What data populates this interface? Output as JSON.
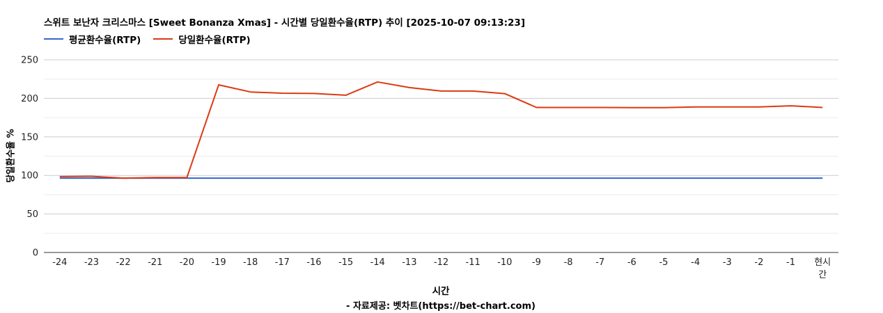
{
  "chart_data": {
    "type": "line",
    "title": "스위트 보난자 크리스마스 [Sweet Bonanza Xmas] - 시간별 당일환수율(RTP) 추이 [2025-10-07 09:13:23]",
    "xlabel": "시간",
    "ylabel": "당일환수율 %",
    "source": "- 자료제공: 벳차트(https://bet-chart.com)",
    "categories": [
      "-24",
      "-23",
      "-22",
      "-21",
      "-20",
      "-19",
      "-18",
      "-17",
      "-16",
      "-15",
      "-14",
      "-13",
      "-12",
      "-11",
      "-10",
      "-9",
      "-8",
      "-7",
      "-6",
      "-5",
      "-4",
      "-3",
      "-2",
      "-1",
      "현시간"
    ],
    "yticks": [
      0,
      50,
      100,
      150,
      200,
      250
    ],
    "ylim": [
      0,
      250
    ],
    "grid": true,
    "legend_position": "top-left",
    "series": [
      {
        "name": "평균환수율(RTP)",
        "color": "#3366cc",
        "values": [
          96.5,
          96.5,
          96.5,
          96.5,
          96.5,
          96.5,
          96.5,
          96.5,
          96.5,
          96.5,
          96.5,
          96.5,
          96.5,
          96.5,
          96.5,
          96.5,
          96.5,
          96.5,
          96.5,
          96.5,
          96.5,
          96.5,
          96.5,
          96.5,
          96.5
        ]
      },
      {
        "name": "당일환수율(RTP)",
        "color": "#dc3912",
        "values": [
          98.5,
          98.8,
          96.5,
          97.3,
          97.3,
          217.5,
          208.3,
          206.7,
          206.3,
          204.1,
          221.3,
          214.0,
          209.5,
          209.5,
          206.1,
          188.2,
          188.2,
          188.2,
          187.9,
          187.9,
          188.8,
          188.8,
          188.8,
          190.3,
          188.2
        ]
      }
    ]
  }
}
